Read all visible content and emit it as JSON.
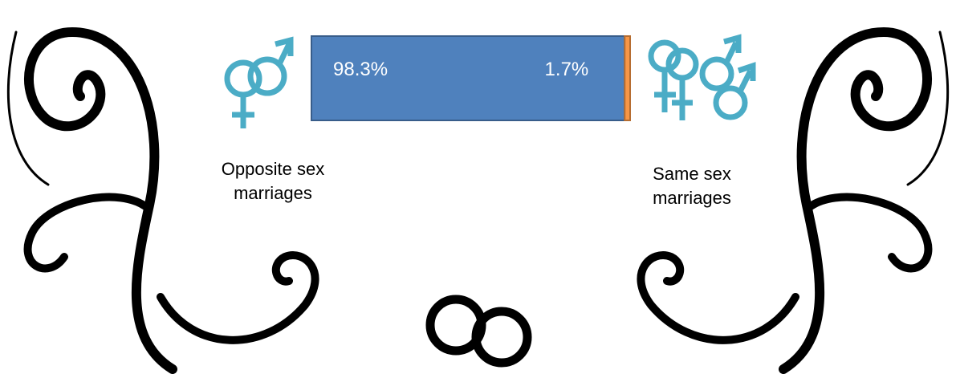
{
  "chart_data": {
    "type": "stacked-bar",
    "orientation": "horizontal",
    "xlim": [
      0,
      100
    ],
    "series": [
      {
        "name": "Opposite sex marriages",
        "color": "#4f81bd",
        "values": [
          98.3
        ],
        "value_labels": [
          "98.3%"
        ]
      },
      {
        "name": "Same sex marriages",
        "color": "#f79646",
        "values": [
          1.7
        ],
        "value_labels": [
          "1.7%"
        ]
      }
    ]
  }
}
